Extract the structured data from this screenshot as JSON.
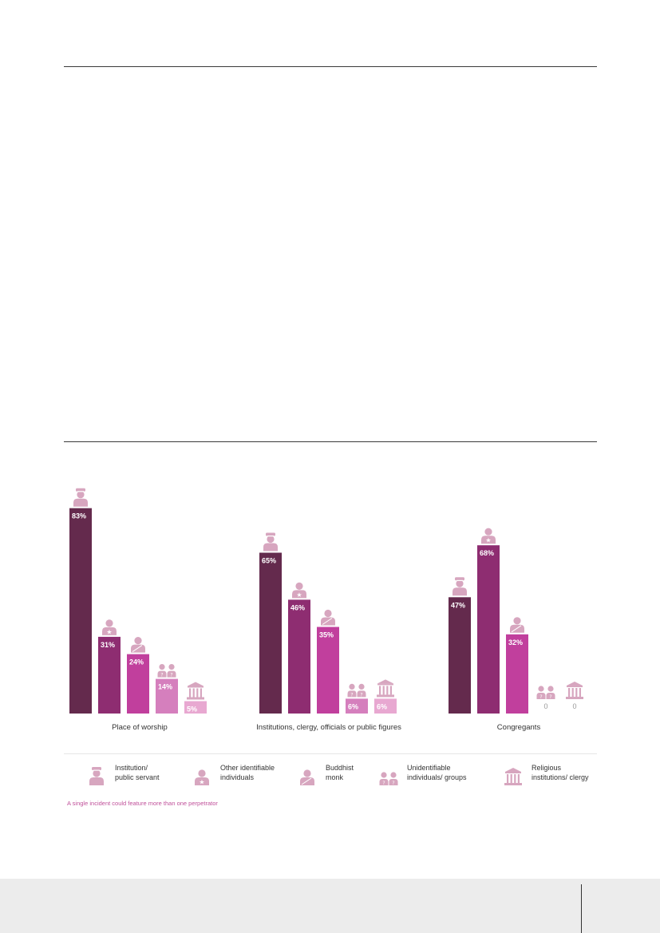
{
  "chart_data": {
    "type": "bar",
    "categories": [
      "Place of worship",
      "Institutions, clergy, officials or public figures",
      "Congregants"
    ],
    "series": [
      {
        "name": "Institution/ public servant",
        "values": [
          83,
          65,
          47
        ],
        "labels": [
          "83%",
          "65%",
          "47%"
        ],
        "color": "#642a4d"
      },
      {
        "name": "Other identifiable individuals",
        "values": [
          31,
          46,
          68
        ],
        "labels": [
          "31%",
          "46%",
          "68%"
        ],
        "color": "#8e2d71"
      },
      {
        "name": "Buddhist monk",
        "values": [
          24,
          35,
          32
        ],
        "labels": [
          "24%",
          "35%",
          "32%"
        ],
        "color": "#c13f9d"
      },
      {
        "name": "Unidentifiable individuals/ groups",
        "values": [
          14,
          6,
          0
        ],
        "labels": [
          "14%",
          "6%",
          "0"
        ],
        "color": "#d57fbd"
      },
      {
        "name": "Religious institutions/ clergy",
        "values": [
          5,
          6,
          0
        ],
        "labels": [
          "5%",
          "6%",
          "0"
        ],
        "color": "#e8a8d1"
      }
    ],
    "ylim": [
      0,
      100
    ],
    "grid": false,
    "legend_position": "bottom"
  },
  "legend": [
    {
      "label": "Institution/\npublic servant",
      "icon": "officer-icon"
    },
    {
      "label": "Other identifiable\nindividuals",
      "icon": "star-person-icon"
    },
    {
      "label": "Buddhist\nmonk",
      "icon": "monk-icon"
    },
    {
      "label": "Unidentifiable\nindividuals/ groups",
      "icon": "unknown-group-icon"
    },
    {
      "label": "Religious\ninstitutions/ clergy",
      "icon": "temple-icon"
    }
  ],
  "note": "A single incident could feature more than one perpetrator",
  "colors": {
    "icon": "#d7a6bf",
    "zero_label": "#9a9a9a"
  }
}
